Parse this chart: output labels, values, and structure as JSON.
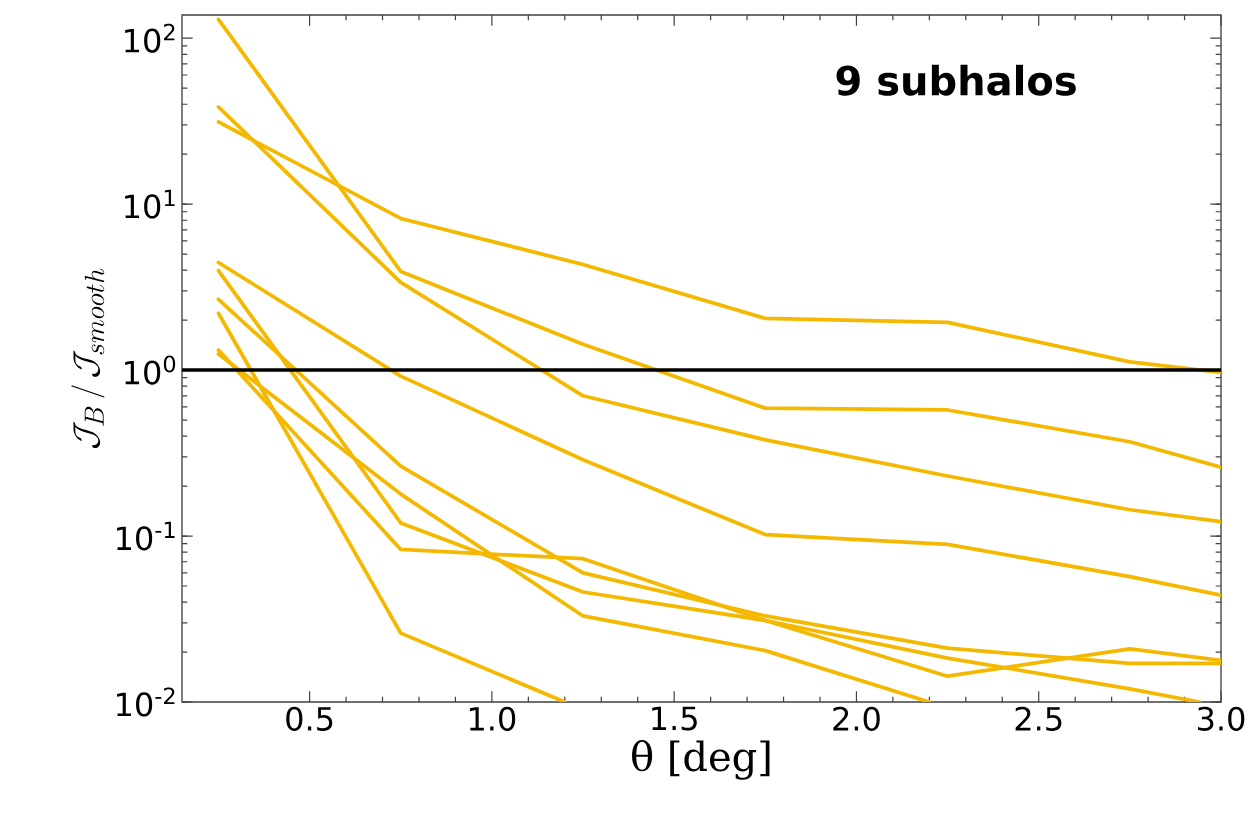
{
  "chart_data": {
    "type": "line",
    "xlabel": "θ [deg]",
    "ylabel": "\\mathcal{J}_B\\,/\\,\\mathcal{J}_{smooth}",
    "annotations": [
      "9 subhalos"
    ],
    "x": [
      0.25,
      0.75,
      1.25,
      1.75,
      2.25,
      2.75,
      3.0
    ],
    "xlim": [
      0.15,
      3.0
    ],
    "xticks": [
      0.5,
      {
        "value": 1,
        "label": "1.0"
      },
      1.5,
      {
        "value": 2,
        "label": "2.0"
      },
      2.5,
      {
        "value": 3,
        "label": "3.0"
      }
    ],
    "ylim": [
      0.01,
      138
    ],
    "yticks": [
      {
        "value": 0.01,
        "label": "10$^{-2}$"
      },
      {
        "value": 0.1,
        "label": "10$^{-1}$"
      },
      {
        "value": 1,
        "label": "10$^{0}$"
      },
      {
        "value": 10,
        "label": "10$^{1}$"
      },
      {
        "value": 100,
        "label": "10$^{2}$"
      }
    ],
    "log": "y",
    "marker": "none",
    "line_style": "solid",
    "ref_lines": [
      {
        "axis": "y",
        "value": 1,
        "color": "#000000"
      }
    ],
    "series": [
      {
        "color": "#f5b800",
        "values": [
          130,
          3.93,
          1.43,
          0.59,
          0.575,
          0.37,
          0.26
        ]
      },
      {
        "color": "#f5b800",
        "values": [
          38.5,
          3.38,
          0.7,
          0.38,
          0.23,
          0.144,
          0.122
        ]
      },
      {
        "color": "#f5b800",
        "values": [
          31.3,
          8.2,
          4.33,
          2.05,
          1.94,
          1.12,
          0.97
        ]
      },
      {
        "color": "#f5b800",
        "values": [
          4.45,
          0.92,
          0.288,
          0.102,
          0.089,
          0.057,
          0.044
        ]
      },
      {
        "color": "#f5b800",
        "x": [
          0.25,
          0.75,
          1.25,
          1.75,
          2.25,
          2.75,
          2.94
        ],
        "values": [
          3.98,
          0.12,
          0.046,
          0.031,
          0.0184,
          0.012,
          0.01
        ]
      },
      {
        "color": "#f5b800",
        "values": [
          2.67,
          0.264,
          0.06,
          0.033,
          0.0211,
          0.0171,
          0.0171
        ]
      },
      {
        "color": "#f5b800",
        "values": [
          1.32,
          0.083,
          0.073,
          0.031,
          0.0143,
          0.0209,
          0.0178
        ]
      },
      {
        "color": "#f5b800",
        "x": [
          0.25,
          0.75,
          1.25,
          1.75,
          2.2
        ],
        "values": [
          1.25,
          0.179,
          0.033,
          0.0204,
          0.01
        ]
      },
      {
        "color": "#f5b800",
        "x": [
          0.25,
          0.75,
          1.2
        ],
        "values": [
          2.2,
          0.026,
          0.01
        ]
      }
    ]
  }
}
